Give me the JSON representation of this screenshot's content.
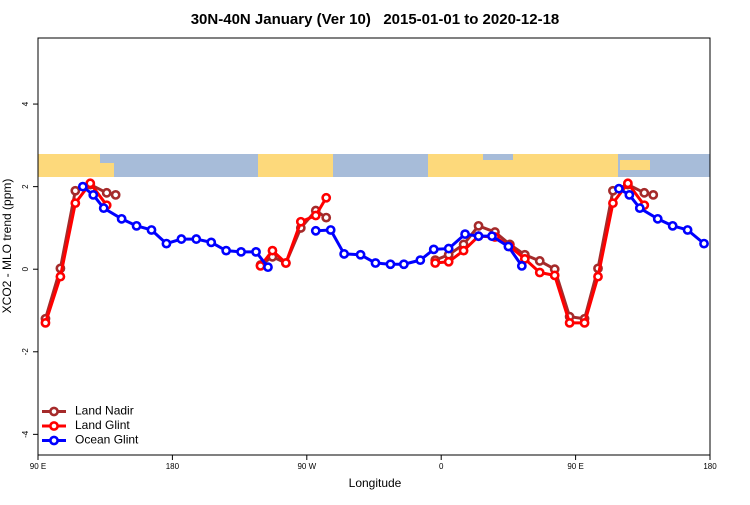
{
  "chart_data": {
    "type": "line",
    "title": "30N-40N January (Ver 10)   2015-01-01 to 2020-12-18",
    "xlabel": "Longitude",
    "ylabel": "XCO2 - MLO trend (ppm)",
    "xlim": [
      90,
      540
    ],
    "xticks": [
      {
        "value": 90,
        "label": "90 E"
      },
      180,
      {
        "value": 270,
        "label": "90 W"
      },
      {
        "value": 360,
        "label": "0"
      },
      {
        "value": 450,
        "label": "90 E"
      },
      {
        "value": 540,
        "label": "180"
      }
    ],
    "ylim": [
      -4.5,
      5.6
    ],
    "yticks": [
      -4,
      -2,
      0,
      2,
      4
    ],
    "legend": "bottomleft",
    "series": [
      {
        "name": "Land Nadir",
        "color": "#a52a2a",
        "x": [
          95,
          105,
          115,
          125,
          136,
          142,
          190,
          239,
          247,
          256,
          266,
          276,
          283,
          320,
          356,
          365,
          375,
          385,
          396,
          406,
          416,
          426,
          436,
          446,
          456,
          465,
          475,
          485,
          496,
          502
        ],
        "values": [
          -1.2,
          0.02,
          1.9,
          2.05,
          1.85,
          1.8,
          null,
          0.1,
          0.3,
          0.15,
          1.0,
          1.42,
          1.25,
          null,
          0.22,
          0.35,
          0.6,
          1.05,
          0.9,
          0.6,
          0.35,
          0.2,
          0.0,
          -1.15,
          -1.2,
          0.02,
          1.9,
          2.05,
          1.85,
          1.8
        ]
      },
      {
        "name": "Land Glint",
        "color": "#ff0000",
        "x": [
          95,
          105,
          115,
          125,
          136,
          190,
          239,
          247,
          256,
          266,
          276,
          283,
          320,
          356,
          365,
          375,
          385,
          396,
          406,
          416,
          426,
          436,
          446,
          456,
          465,
          475,
          485,
          496
        ],
        "values": [
          -1.3,
          -0.18,
          1.6,
          2.08,
          1.55,
          null,
          0.08,
          0.45,
          0.15,
          1.15,
          1.3,
          1.73,
          null,
          0.15,
          0.18,
          0.45,
          0.8,
          0.78,
          0.55,
          0.25,
          -0.08,
          -0.15,
          -1.3,
          -1.3,
          -0.18,
          1.6,
          2.08,
          1.55
        ]
      },
      {
        "name": "Ocean Glint",
        "color": "#0000ff",
        "x": [
          120,
          127,
          134,
          146,
          156,
          166,
          176,
          186,
          196,
          206,
          216,
          226,
          236,
          244,
          270,
          276,
          286,
          295,
          306,
          316,
          326,
          335,
          346,
          355,
          365,
          376,
          385,
          394,
          405,
          414,
          470,
          479,
          486,
          493,
          505,
          515,
          525,
          536
        ],
        "values": [
          2.0,
          1.8,
          1.48,
          1.22,
          1.05,
          0.95,
          0.62,
          0.73,
          0.73,
          0.65,
          0.45,
          0.42,
          0.42,
          0.05,
          null,
          0.93,
          0.95,
          0.37,
          0.35,
          0.15,
          0.12,
          0.12,
          0.22,
          0.48,
          0.5,
          0.85,
          0.8,
          0.8,
          0.55,
          0.08,
          null,
          1.95,
          1.8,
          1.48,
          1.22,
          1.05,
          0.95,
          0.62
        ]
      }
    ]
  }
}
